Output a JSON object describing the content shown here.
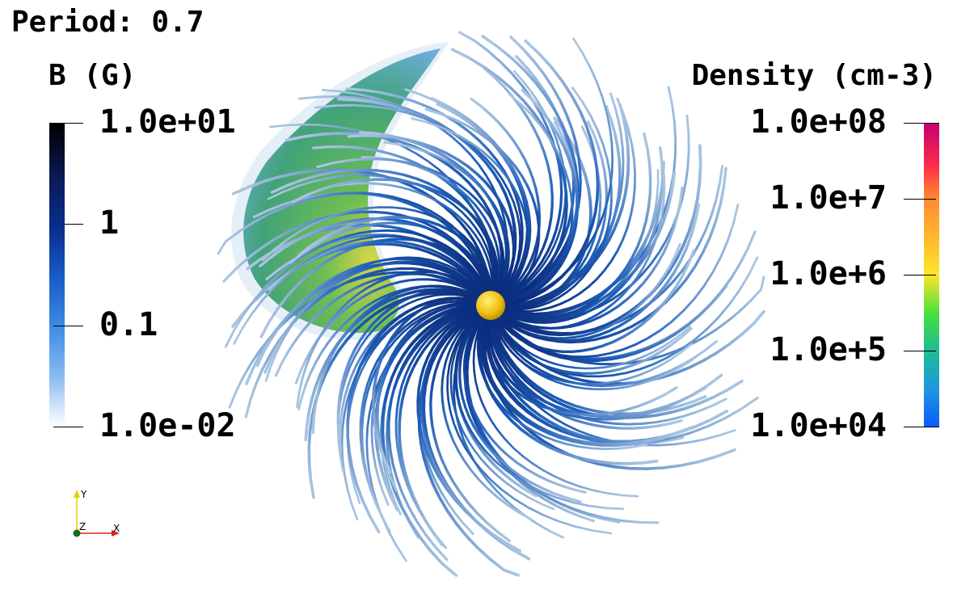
{
  "title": "Period: 0.7",
  "b_colorbar": {
    "title": "B (G)",
    "ticks": [
      "1.0e+01",
      "1",
      "0.1",
      "1.0e-02"
    ]
  },
  "density_colorbar": {
    "title": "Density (cm-3)",
    "ticks": [
      "1.0e+08",
      "1.0e+7",
      "1.0e+6",
      "1.0e+5",
      "1.0e+04"
    ]
  },
  "axes": {
    "y": "Y",
    "z": "Z",
    "x": "X"
  },
  "colors": {
    "field_line_dark": "#0a2a7a",
    "field_line_light": "#a8c4e0",
    "star": "#f2c21a",
    "plume_green": "#3fae5a",
    "plume_blue": "#5aa0d0"
  }
}
